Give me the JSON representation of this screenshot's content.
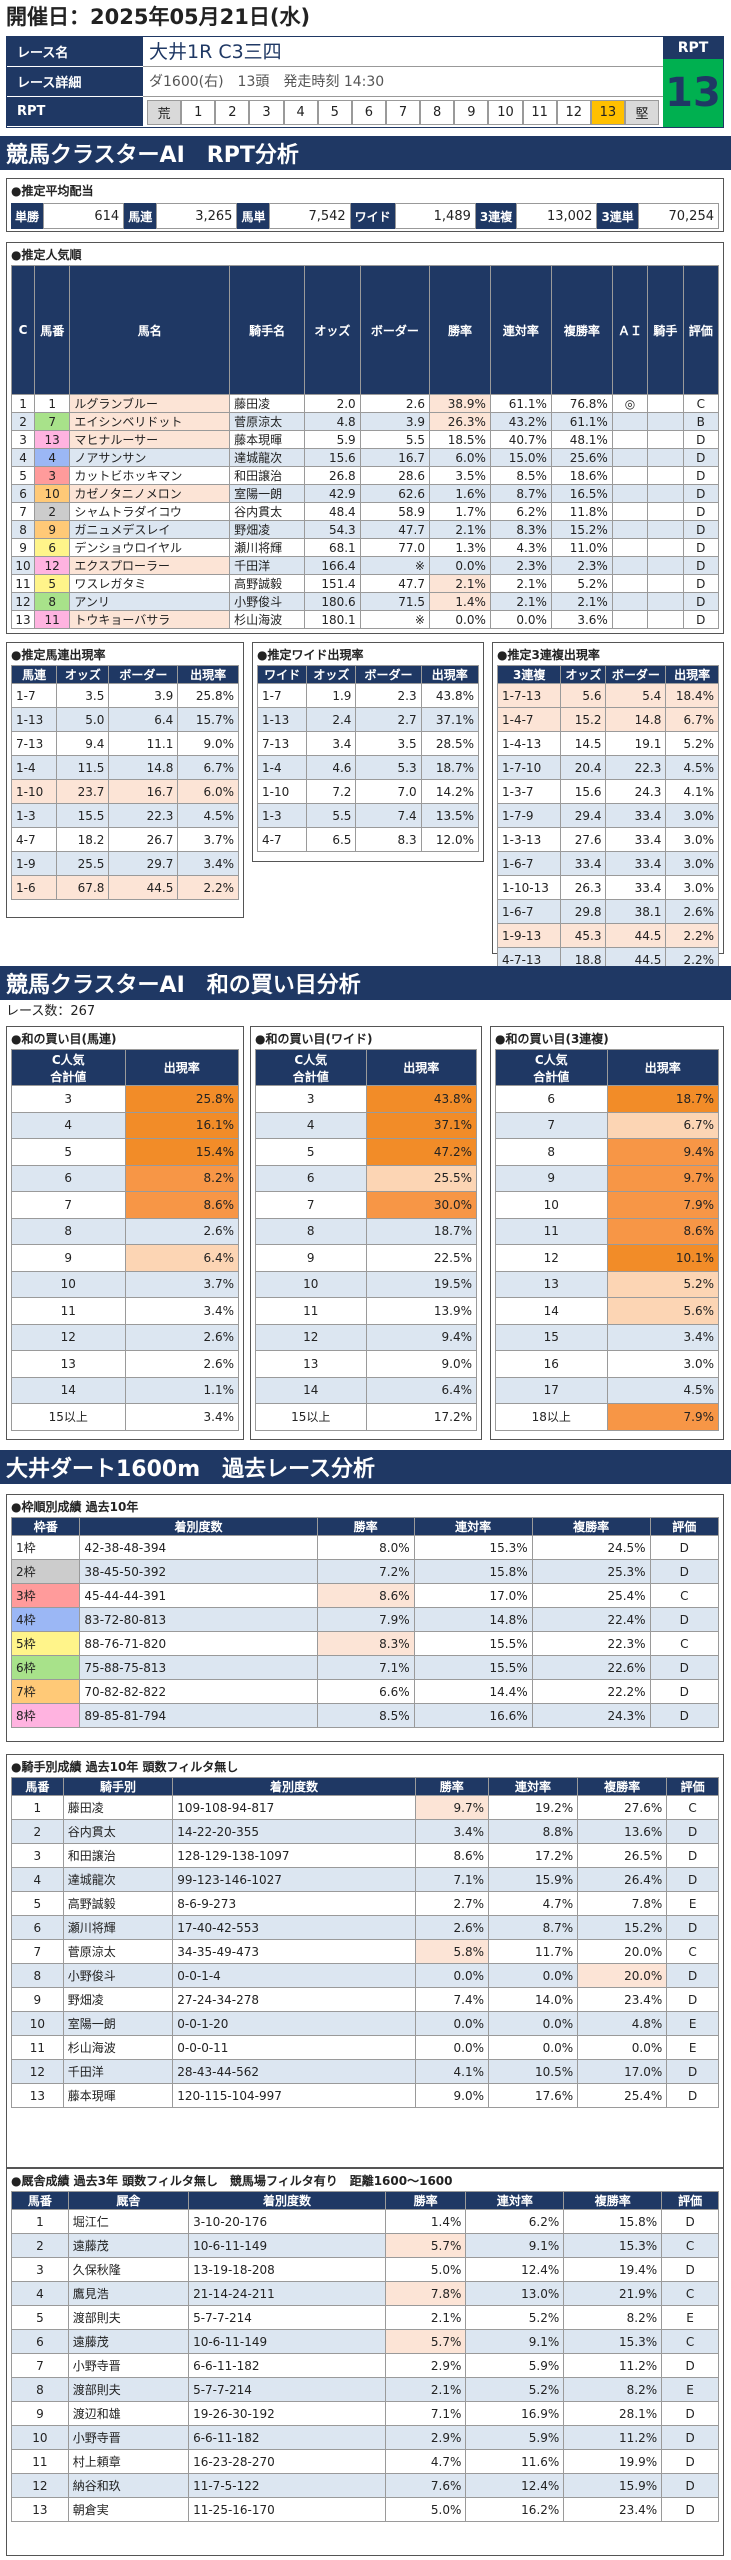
{
  "header": {
    "date_label": "開催日：2025年05月21日(水)"
  },
  "race": {
    "name_label": "レース名",
    "name": "大井1R C3三四",
    "detail_label": "レース詳細",
    "detail": "ダ1600(右)　13頭　発走時刻 14:30",
    "rpt_label": "RPT",
    "rpt_badge_label": "RPT",
    "rpt_value": "13",
    "rpt_scale": [
      "荒",
      "1",
      "2",
      "3",
      "4",
      "5",
      "6",
      "7",
      "8",
      "9",
      "10",
      "11",
      "12",
      "13",
      "堅"
    ]
  },
  "s1": {
    "title": "競馬クラスターAI　RPT分析"
  },
  "payout": {
    "title": "●推定平均配当",
    "items": [
      {
        "k": "単勝",
        "v": "614"
      },
      {
        "k": "馬連",
        "v": "3,265"
      },
      {
        "k": "馬単",
        "v": "7,542"
      },
      {
        "k": "ワイド",
        "v": "1,489"
      },
      {
        "k": "3連複",
        "v": "13,002"
      },
      {
        "k": "3連単",
        "v": "70,254"
      }
    ]
  },
  "pop": {
    "title": "●推定人気順",
    "headers": [
      "C",
      "馬番",
      "馬名",
      "騎手名",
      "オッズ",
      "ボーダー",
      "勝率",
      "連対率",
      "複勝率",
      "ＡＩ",
      "騎手",
      "評価"
    ],
    "rows": [
      [
        "1",
        "1",
        "ルグランブルー",
        "藤田凌",
        "2.0",
        "2.6",
        "38.9%",
        "61.1%",
        "76.8%",
        "◎",
        "",
        "C"
      ],
      [
        "2",
        "7",
        "エイシンベリドット",
        "菅原涼太",
        "4.8",
        "3.9",
        "26.3%",
        "43.2%",
        "61.1%",
        "",
        "",
        "B"
      ],
      [
        "3",
        "13",
        "マヒナルーサー",
        "藤本現暉",
        "5.9",
        "5.5",
        "18.5%",
        "40.7%",
        "48.1%",
        "",
        "",
        "D"
      ],
      [
        "4",
        "4",
        "ノアサンサン",
        "達城龍次",
        "15.6",
        "16.7",
        "6.0%",
        "15.0%",
        "25.6%",
        "",
        "",
        "D"
      ],
      [
        "5",
        "3",
        "カットビホッキマン",
        "和田譲治",
        "26.8",
        "28.6",
        "3.5%",
        "8.5%",
        "18.6%",
        "",
        "",
        "D"
      ],
      [
        "6",
        "10",
        "カゼノタニノメロン",
        "室陽一朗",
        "42.9",
        "62.6",
        "1.6%",
        "8.7%",
        "16.5%",
        "",
        "",
        "D"
      ],
      [
        "7",
        "2",
        "シャムトラダイコウ",
        "谷内貫太",
        "48.4",
        "58.9",
        "1.7%",
        "6.2%",
        "11.8%",
        "",
        "",
        "D"
      ],
      [
        "8",
        "9",
        "ガニュメデスレイ",
        "野畑凌",
        "54.3",
        "47.7",
        "2.1%",
        "8.3%",
        "15.2%",
        "",
        "",
        "D"
      ],
      [
        "9",
        "6",
        "デンショウロイヤル",
        "瀬川将輝",
        "68.1",
        "77.0",
        "1.3%",
        "4.3%",
        "11.0%",
        "",
        "",
        "D"
      ],
      [
        "10",
        "12",
        "エクスプローラー",
        "千田洋",
        "166.4",
        "※",
        "0.0%",
        "2.3%",
        "2.3%",
        "",
        "",
        "D"
      ],
      [
        "11",
        "5",
        "ワスレガタミ",
        "高野誠毅",
        "151.4",
        "47.7",
        "2.1%",
        "2.1%",
        "5.2%",
        "",
        "",
        "D"
      ],
      [
        "12",
        "8",
        "アンリ",
        "小野俊斗",
        "180.6",
        "71.5",
        "1.4%",
        "2.1%",
        "2.1%",
        "",
        "",
        "D"
      ],
      [
        "13",
        "11",
        "トウキョーバサラ",
        "杉山海波",
        "180.1",
        "※",
        "0.0%",
        "0.0%",
        "3.6%",
        "",
        "",
        "D"
      ]
    ]
  },
  "umaren": {
    "title": "●推定馬連出現率",
    "headers": [
      "馬連",
      "オッズ",
      "ボーダー",
      "出現率"
    ],
    "rows": [
      [
        "1-7",
        "3.5",
        "3.9",
        "25.8%"
      ],
      [
        "1-13",
        "5.0",
        "6.4",
        "15.7%"
      ],
      [
        "7-13",
        "9.4",
        "11.1",
        "9.0%"
      ],
      [
        "1-4",
        "11.5",
        "14.8",
        "6.7%"
      ],
      [
        "1-10",
        "23.7",
        "16.7",
        "6.0%"
      ],
      [
        "1-3",
        "15.5",
        "22.3",
        "4.5%"
      ],
      [
        "4-7",
        "18.2",
        "26.7",
        "3.7%"
      ],
      [
        "1-9",
        "25.5",
        "29.7",
        "3.4%"
      ],
      [
        "1-6",
        "67.8",
        "44.5",
        "2.2%"
      ]
    ]
  },
  "wide": {
    "title": "●推定ワイド出現率",
    "headers": [
      "ワイド",
      "オッズ",
      "ボーダー",
      "出現率"
    ],
    "rows": [
      [
        "1-7",
        "1.9",
        "2.3",
        "43.8%"
      ],
      [
        "1-13",
        "2.4",
        "2.7",
        "37.1%"
      ],
      [
        "7-13",
        "3.4",
        "3.5",
        "28.5%"
      ],
      [
        "1-4",
        "4.6",
        "5.3",
        "18.7%"
      ],
      [
        "1-10",
        "7.2",
        "7.0",
        "14.2%"
      ],
      [
        "1-3",
        "5.5",
        "7.4",
        "13.5%"
      ],
      [
        "4-7",
        "6.5",
        "8.3",
        "12.0%"
      ]
    ]
  },
  "sanrenpuku": {
    "title": "●推定3連複出現率",
    "headers": [
      "3連複",
      "オッズ",
      "ボーダー",
      "出現率"
    ],
    "rows": [
      [
        "1-7-13",
        "5.6",
        "5.4",
        "18.4%"
      ],
      [
        "1-4-7",
        "15.2",
        "14.8",
        "6.7%"
      ],
      [
        "1-4-13",
        "14.5",
        "19.1",
        "5.2%"
      ],
      [
        "1-7-10",
        "20.4",
        "22.3",
        "4.5%"
      ],
      [
        "1-3-7",
        "15.6",
        "24.3",
        "4.1%"
      ],
      [
        "1-7-9",
        "29.4",
        "33.4",
        "3.0%"
      ],
      [
        "1-3-13",
        "27.6",
        "33.4",
        "3.0%"
      ],
      [
        "1-6-7",
        "33.4",
        "33.4",
        "3.0%"
      ],
      [
        "1-10-13",
        "26.3",
        "33.4",
        "3.0%"
      ],
      [
        "1-6-7",
        "29.8",
        "38.1",
        "2.6%"
      ],
      [
        "1-9-13",
        "45.3",
        "44.5",
        "2.2%"
      ],
      [
        "4-7-13",
        "18.8",
        "44.5",
        "2.2%"
      ]
    ]
  },
  "s2": {
    "title": "競馬クラスターAI　和の買い目分析",
    "races": "レース数：267"
  },
  "wa_umaren": {
    "title": "●和の買い目(馬連)",
    "h1": "C人気",
    "h2": "合計値",
    "h3": "出現率",
    "rows": [
      [
        "3",
        "25.8%"
      ],
      [
        "4",
        "16.1%"
      ],
      [
        "5",
        "15.4%"
      ],
      [
        "6",
        "8.2%"
      ],
      [
        "7",
        "8.6%"
      ],
      [
        "8",
        "2.6%"
      ],
      [
        "9",
        "6.4%"
      ],
      [
        "10",
        "3.7%"
      ],
      [
        "11",
        "3.4%"
      ],
      [
        "12",
        "2.6%"
      ],
      [
        "13",
        "2.6%"
      ],
      [
        "14",
        "1.1%"
      ],
      [
        "15以上",
        "3.4%"
      ]
    ]
  },
  "wa_wide": {
    "title": "●和の買い目(ワイド)",
    "h1": "C人気",
    "h2": "合計値",
    "h3": "出現率",
    "rows": [
      [
        "3",
        "43.8%"
      ],
      [
        "4",
        "37.1%"
      ],
      [
        "5",
        "47.2%"
      ],
      [
        "6",
        "25.5%"
      ],
      [
        "7",
        "30.0%"
      ],
      [
        "8",
        "18.7%"
      ],
      [
        "9",
        "22.5%"
      ],
      [
        "10",
        "19.5%"
      ],
      [
        "11",
        "13.9%"
      ],
      [
        "12",
        "9.4%"
      ],
      [
        "13",
        "9.0%"
      ],
      [
        "14",
        "6.4%"
      ],
      [
        "15以上",
        "17.2%"
      ]
    ]
  },
  "wa_3puku": {
    "title": "●和の買い目(3連複)",
    "h1": "C人気",
    "h2": "合計値",
    "h3": "出現率",
    "rows": [
      [
        "6",
        "18.7%"
      ],
      [
        "7",
        "6.7%"
      ],
      [
        "8",
        "9.4%"
      ],
      [
        "9",
        "9.7%"
      ],
      [
        "10",
        "7.9%"
      ],
      [
        "11",
        "8.6%"
      ],
      [
        "12",
        "10.1%"
      ],
      [
        "13",
        "5.2%"
      ],
      [
        "14",
        "5.6%"
      ],
      [
        "15",
        "3.4%"
      ],
      [
        "16",
        "3.0%"
      ],
      [
        "17",
        "4.5%"
      ],
      [
        "18以上",
        "7.9%"
      ]
    ]
  },
  "s3": {
    "title": "大井ダート1600m　過去レース分析"
  },
  "waku": {
    "title": "●枠順別成績 過去10年",
    "headers": [
      "枠番",
      "着別度数",
      "勝率",
      "連対率",
      "複勝率",
      "評価"
    ],
    "rows": [
      [
        "1枠",
        "42-38-48-394",
        "8.0%",
        "15.3%",
        "24.5%",
        "D"
      ],
      [
        "2枠",
        "38-45-50-392",
        "7.2%",
        "15.8%",
        "25.3%",
        "D"
      ],
      [
        "3枠",
        "45-44-44-391",
        "8.6%",
        "17.0%",
        "25.4%",
        "C"
      ],
      [
        "4枠",
        "83-72-80-813",
        "7.9%",
        "14.8%",
        "22.4%",
        "D"
      ],
      [
        "5枠",
        "88-76-71-820",
        "8.3%",
        "15.5%",
        "22.3%",
        "C"
      ],
      [
        "6枠",
        "75-88-75-813",
        "7.1%",
        "15.5%",
        "22.6%",
        "D"
      ],
      [
        "7枠",
        "70-82-82-822",
        "6.6%",
        "14.4%",
        "22.2%",
        "D"
      ],
      [
        "8枠",
        "89-85-81-794",
        "8.5%",
        "16.6%",
        "24.3%",
        "D"
      ]
    ]
  },
  "jockey": {
    "title": "●騎手別成績 過去10年 頭数フィルタ無し",
    "headers": [
      "馬番",
      "騎手別",
      "着別度数",
      "勝率",
      "連対率",
      "複勝率",
      "評価"
    ],
    "rows": [
      [
        "1",
        "藤田凌",
        "109-108-94-817",
        "9.7%",
        "19.2%",
        "27.6%",
        "C"
      ],
      [
        "2",
        "谷内貫太",
        "14-22-20-355",
        "3.4%",
        "8.8%",
        "13.6%",
        "D"
      ],
      [
        "3",
        "和田譲治",
        "128-129-138-1097",
        "8.6%",
        "17.2%",
        "26.5%",
        "D"
      ],
      [
        "4",
        "達城龍次",
        "99-123-146-1027",
        "7.1%",
        "15.9%",
        "26.4%",
        "D"
      ],
      [
        "5",
        "高野誠毅",
        "8-6-9-273",
        "2.7%",
        "4.7%",
        "7.8%",
        "E"
      ],
      [
        "6",
        "瀬川将輝",
        "17-40-42-553",
        "2.6%",
        "8.7%",
        "15.2%",
        "D"
      ],
      [
        "7",
        "菅原涼太",
        "34-35-49-473",
        "5.8%",
        "11.7%",
        "20.0%",
        "C"
      ],
      [
        "8",
        "小野俊斗",
        "0-0-1-4",
        "0.0%",
        "0.0%",
        "20.0%",
        "D"
      ],
      [
        "9",
        "野畑凌",
        "27-24-34-278",
        "7.4%",
        "14.0%",
        "23.4%",
        "D"
      ],
      [
        "10",
        "室陽一朗",
        "0-0-1-20",
        "0.0%",
        "0.0%",
        "4.8%",
        "E"
      ],
      [
        "11",
        "杉山海波",
        "0-0-0-11",
        "0.0%",
        "0.0%",
        "0.0%",
        "E"
      ],
      [
        "12",
        "千田洋",
        "28-43-44-562",
        "4.1%",
        "10.5%",
        "17.0%",
        "D"
      ],
      [
        "13",
        "藤本現暉",
        "120-115-104-997",
        "9.0%",
        "17.6%",
        "25.4%",
        "D"
      ]
    ]
  },
  "kyusha": {
    "title": "●厩舎成績 過去3年 頭数フィルタ無し　競馬場フィルタ有り　距離1600～1600",
    "headers": [
      "馬番",
      "厩舎",
      "着別度数",
      "勝率",
      "連対率",
      "複勝率",
      "評価"
    ],
    "rows": [
      [
        "1",
        "堀江仁",
        "3-10-20-176",
        "1.4%",
        "6.2%",
        "15.8%",
        "D"
      ],
      [
        "2",
        "遠藤茂",
        "10-6-11-149",
        "5.7%",
        "9.1%",
        "15.3%",
        "C"
      ],
      [
        "3",
        "久保秋隆",
        "13-19-18-208",
        "5.0%",
        "12.4%",
        "19.4%",
        "D"
      ],
      [
        "4",
        "鷹見浩",
        "21-14-24-211",
        "7.8%",
        "13.0%",
        "21.9%",
        "C"
      ],
      [
        "5",
        "渡部則夫",
        "5-7-7-214",
        "2.1%",
        "5.2%",
        "8.2%",
        "E"
      ],
      [
        "6",
        "遠藤茂",
        "10-6-11-149",
        "5.7%",
        "9.1%",
        "15.3%",
        "C"
      ],
      [
        "7",
        "小野寺晋",
        "6-6-11-182",
        "2.9%",
        "5.9%",
        "11.2%",
        "D"
      ],
      [
        "8",
        "渡部則夫",
        "5-7-7-214",
        "2.1%",
        "5.2%",
        "8.2%",
        "E"
      ],
      [
        "9",
        "渡辺和雄",
        "19-26-30-192",
        "7.1%",
        "16.9%",
        "28.1%",
        "D"
      ],
      [
        "10",
        "小野寺晋",
        "6-6-11-182",
        "2.9%",
        "5.9%",
        "11.2%",
        "D"
      ],
      [
        "11",
        "村上頼章",
        "16-23-28-270",
        "4.7%",
        "11.6%",
        "19.9%",
        "D"
      ],
      [
        "12",
        "納谷和玖",
        "11-7-5-122",
        "7.6%",
        "12.4%",
        "15.9%",
        "D"
      ],
      [
        "13",
        "朝倉実",
        "11-25-16-170",
        "5.0%",
        "16.2%",
        "23.4%",
        "D"
      ]
    ]
  }
}
